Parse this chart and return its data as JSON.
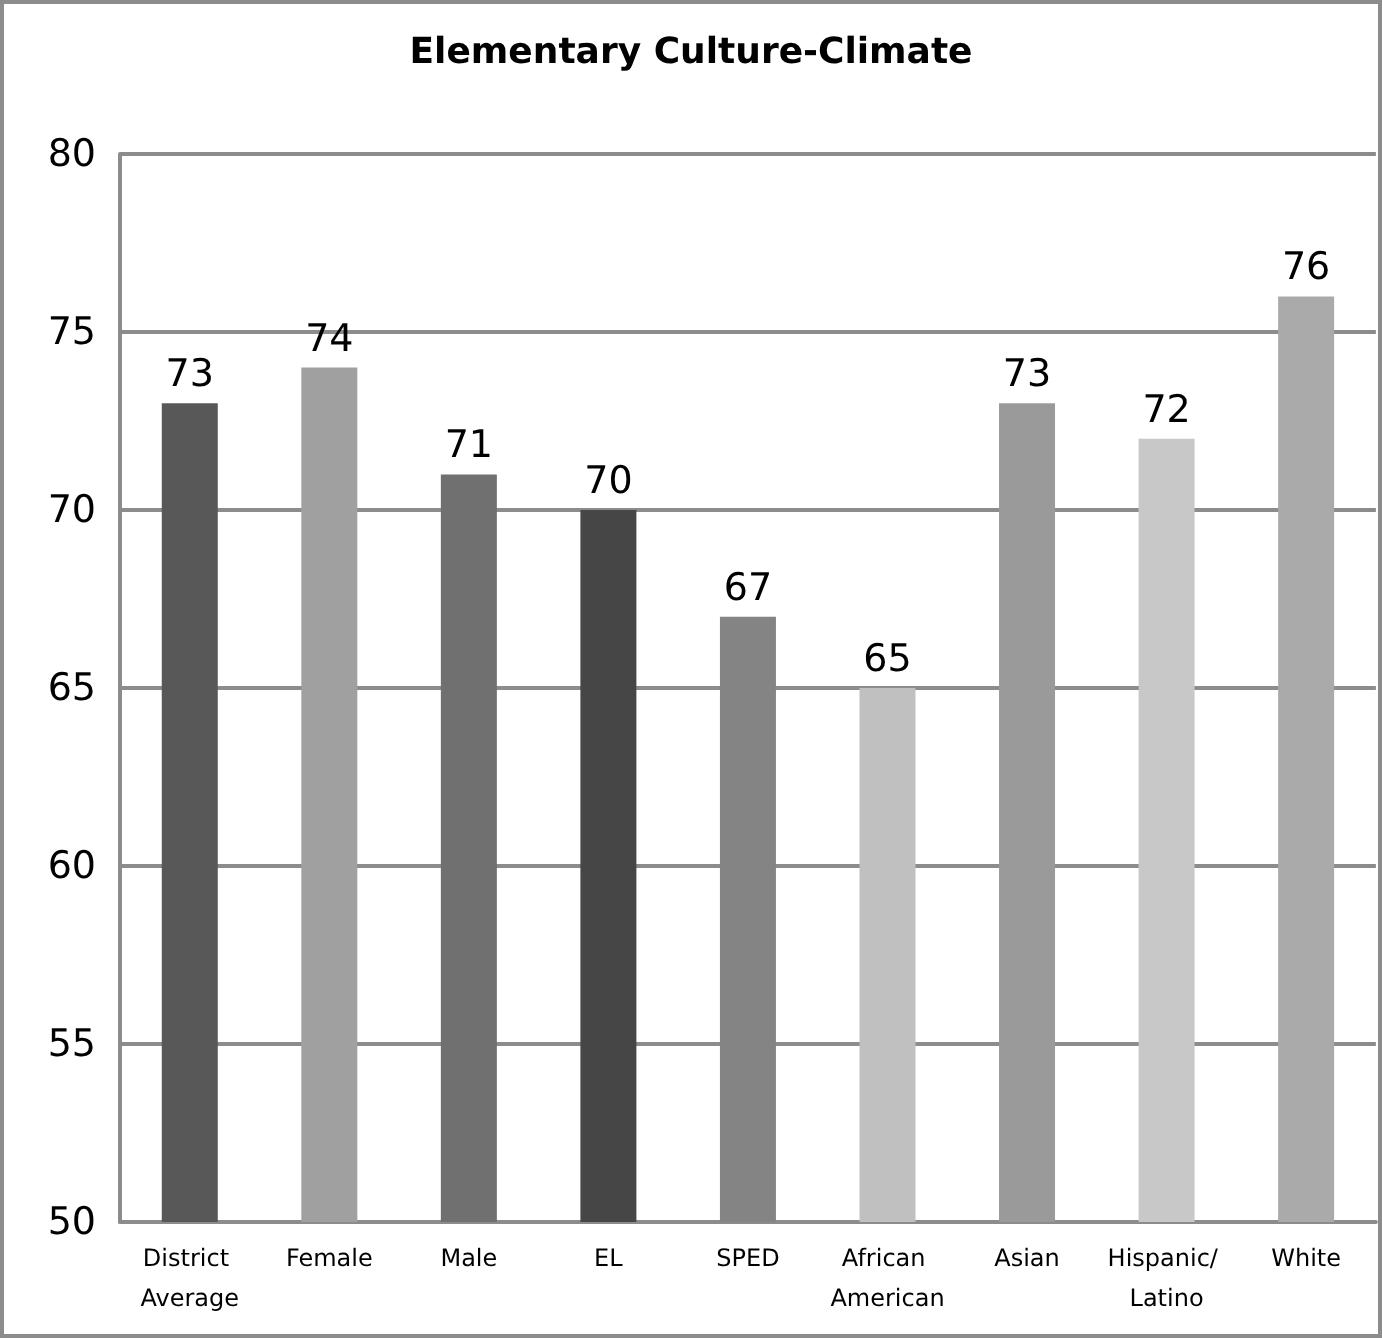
{
  "chart_data": {
    "type": "bar",
    "title": "Elementary Culture-Climate",
    "categories": [
      "District Average",
      "Female",
      "Male",
      "EL",
      "SPED",
      "African American",
      "Asian",
      "Hispanic/ Latino",
      "White"
    ],
    "values": [
      73,
      74,
      71,
      70,
      67,
      65,
      73,
      72,
      76
    ],
    "colors": [
      "#585858",
      "#a0a0a0",
      "#707070",
      "#464646",
      "#848484",
      "#c0c0c0",
      "#9a9a9a",
      "#c8c8c8",
      "#aaaaaa"
    ],
    "ylim": [
      50,
      80
    ],
    "yticks": [
      50,
      55,
      60,
      65,
      70,
      75,
      80
    ],
    "grid": true,
    "data_labels": true
  }
}
